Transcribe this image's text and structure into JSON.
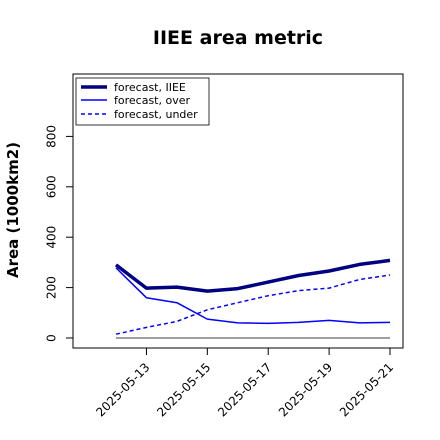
{
  "chart_data": {
    "type": "line",
    "title": "IIEE area metric",
    "xlabel": "",
    "ylabel": "Area (1000km2)",
    "x": [
      "2025-05-12",
      "2025-05-13",
      "2025-05-14",
      "2025-05-15",
      "2025-05-16",
      "2025-05-17",
      "2025-05-18",
      "2025-05-19",
      "2025-05-20",
      "2025-05-21"
    ],
    "x_tick_labels": [
      "2025-05-13",
      "2025-05-15",
      "2025-05-17",
      "2025-05-19",
      "2025-05-21"
    ],
    "highlighted_tick": "2025-05-13",
    "highlight_color": "#008000",
    "ylim": [
      -50,
      1000
    ],
    "y_ticks": [
      0,
      200,
      400,
      600,
      800
    ],
    "grid": false,
    "legend_position": "top-left",
    "series": [
      {
        "name": "forecast, IIEE",
        "style": "solid-thick",
        "color": "#000080",
        "values": [
          290,
          198,
          202,
          186,
          196,
          222,
          248,
          266,
          292,
          308
        ]
      },
      {
        "name": "forecast, over",
        "style": "solid",
        "color": "#0000ff",
        "values": [
          278,
          160,
          140,
          75,
          60,
          58,
          62,
          70,
          60,
          62
        ]
      },
      {
        "name": "forecast, under",
        "style": "dashed",
        "color": "#0000ff",
        "values": [
          15,
          42,
          66,
          112,
          140,
          168,
          188,
          198,
          232,
          250
        ]
      }
    ],
    "baseline": {
      "value": 0,
      "color": "#808080"
    }
  }
}
